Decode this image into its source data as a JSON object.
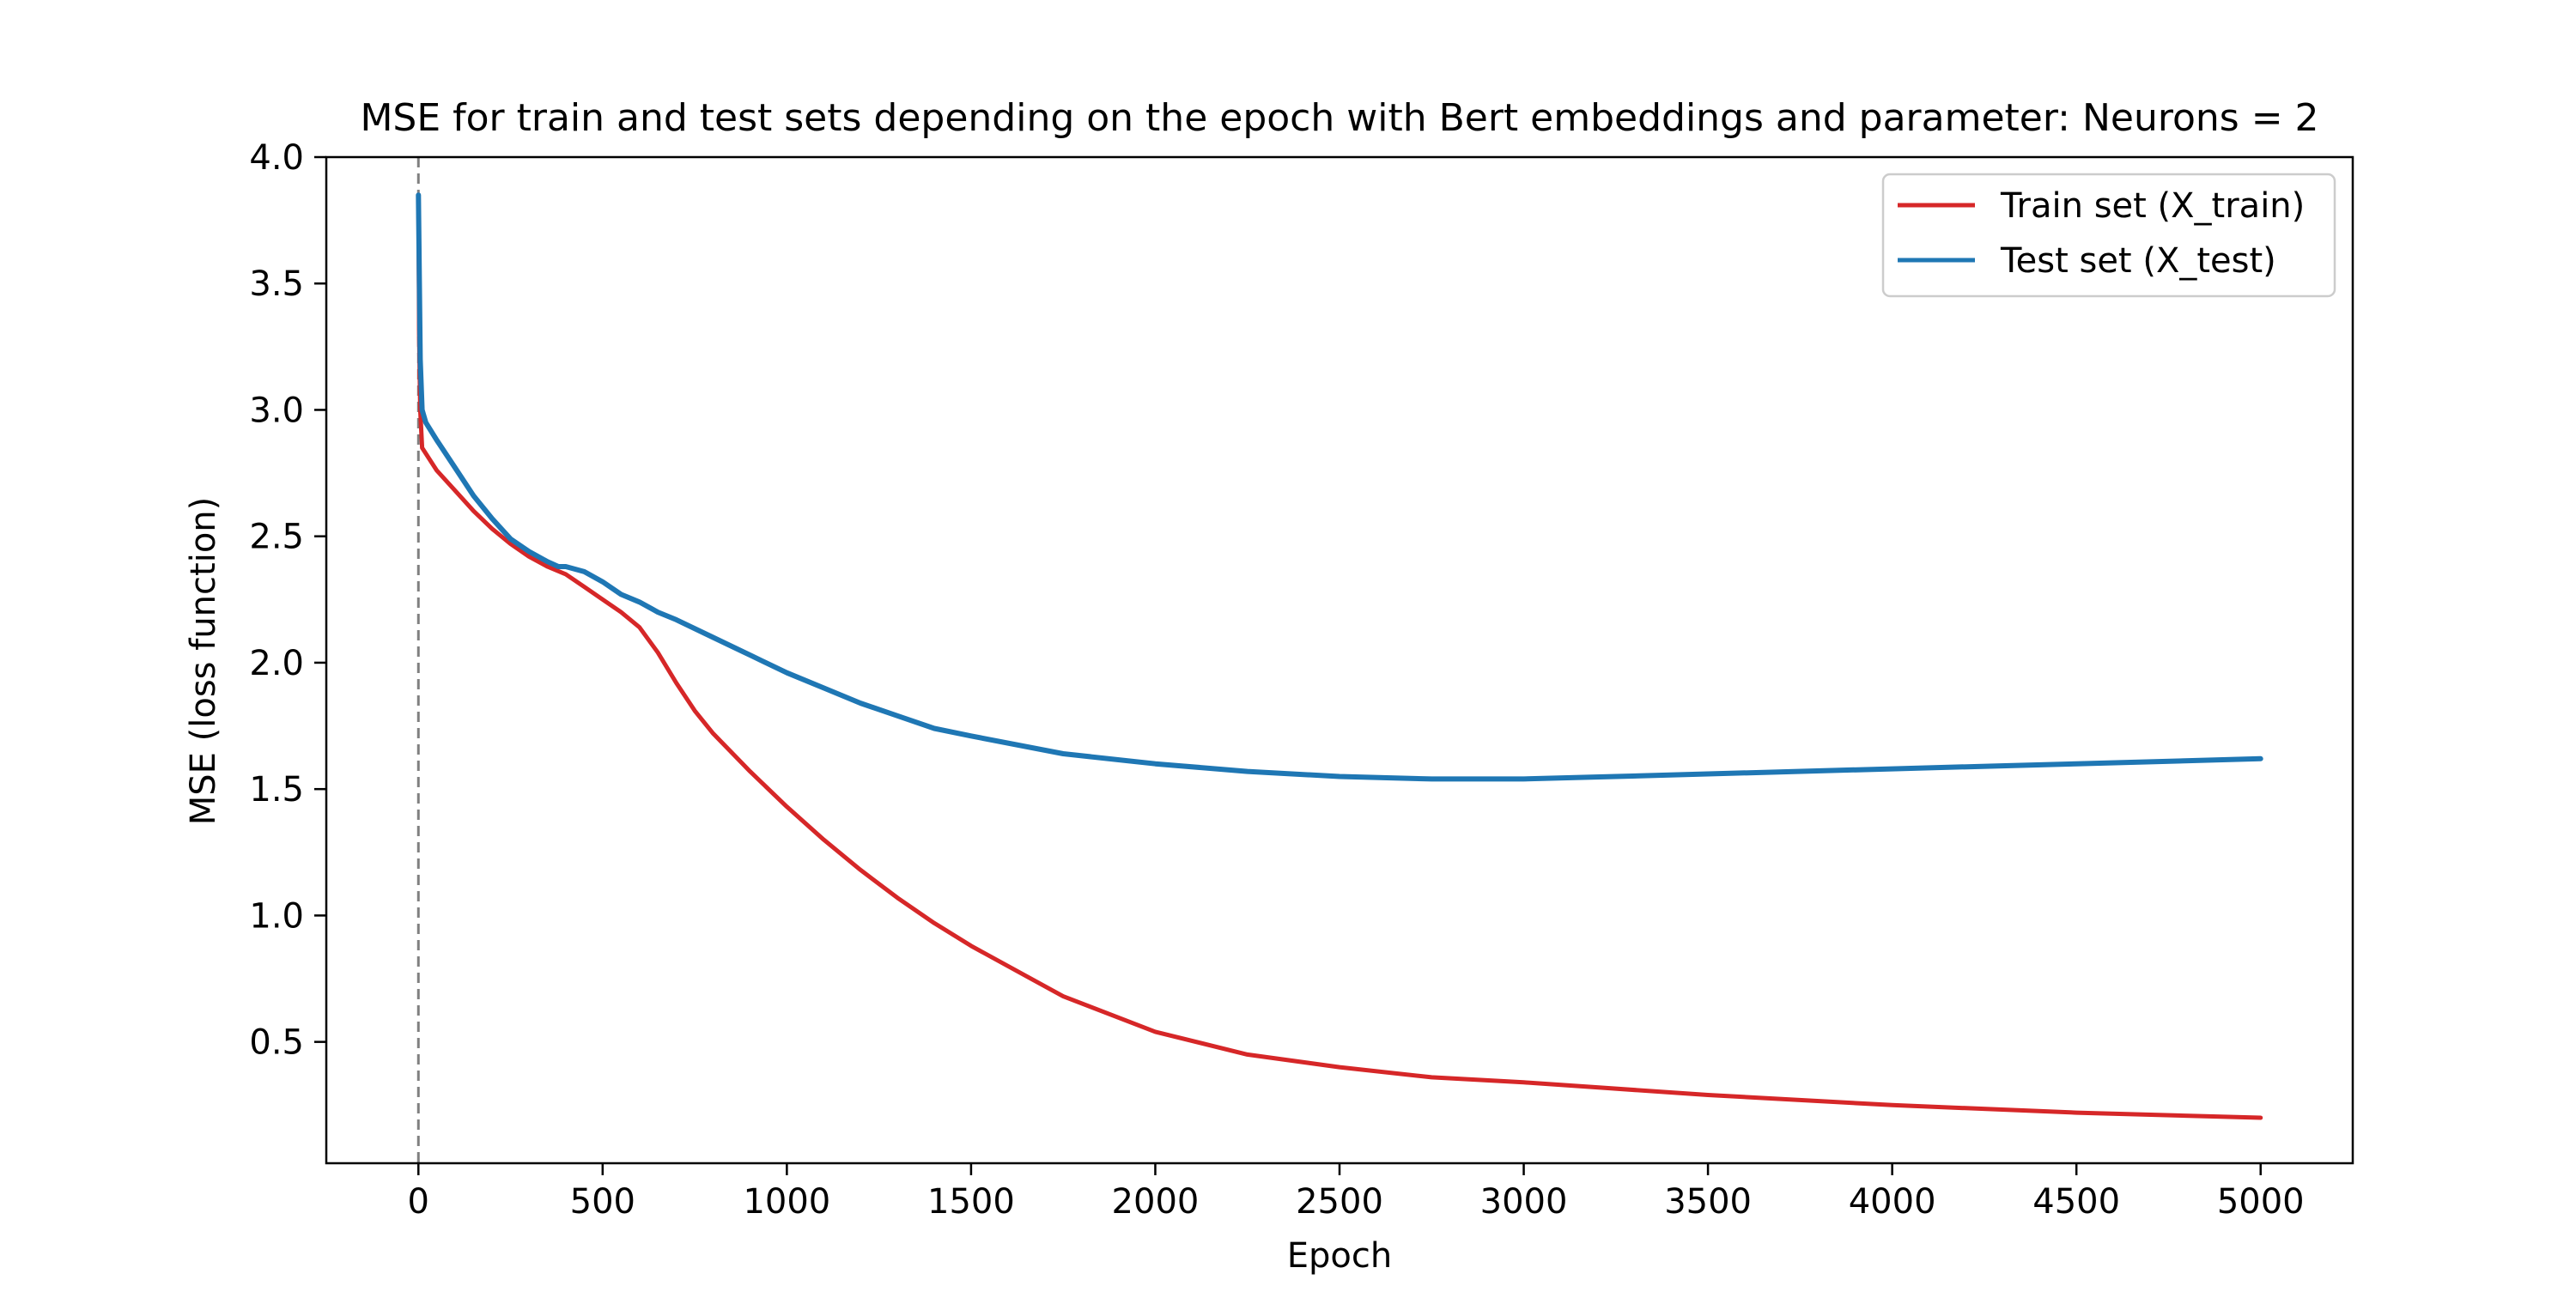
{
  "chart_data": {
    "type": "line",
    "title": "MSE for train and test sets depending on the epoch with Bert embeddings and parameter: Neurons = 2",
    "xlabel": "Epoch",
    "ylabel": "MSE (loss function)",
    "xlim": [
      -250,
      5250
    ],
    "ylim": [
      0.02,
      4.0
    ],
    "xticks": [
      0,
      500,
      1000,
      1500,
      2000,
      2500,
      3000,
      3500,
      4000,
      4500,
      5000
    ],
    "yticks": [
      0.5,
      1.0,
      1.5,
      2.0,
      2.5,
      3.0,
      3.5,
      4.0
    ],
    "xtick_labels": [
      "0",
      "500",
      "1000",
      "1500",
      "2000",
      "2500",
      "3000",
      "3500",
      "4000",
      "4500",
      "5000"
    ],
    "ytick_labels": [
      "0.5",
      "1.0",
      "1.5",
      "2.0",
      "2.5",
      "3.0",
      "3.5",
      "4.0"
    ],
    "grid": false,
    "legend_position": "top-right",
    "vline": {
      "x": 0,
      "color": "#808080",
      "style": "dashed"
    },
    "series": [
      {
        "name": "Train set (X_train)",
        "color": "#d62728",
        "x": [
          0,
          2,
          5,
          10,
          50,
          100,
          150,
          200,
          250,
          300,
          350,
          400,
          450,
          500,
          550,
          600,
          650,
          700,
          750,
          800,
          900,
          1000,
          1100,
          1200,
          1300,
          1400,
          1500,
          1750,
          2000,
          2250,
          2500,
          2750,
          3000,
          3500,
          4000,
          4500,
          5000
        ],
        "y": [
          3.85,
          3.3,
          3.0,
          2.85,
          2.76,
          2.68,
          2.6,
          2.53,
          2.47,
          2.42,
          2.38,
          2.35,
          2.3,
          2.25,
          2.2,
          2.14,
          2.04,
          1.92,
          1.81,
          1.72,
          1.57,
          1.43,
          1.3,
          1.18,
          1.07,
          0.97,
          0.88,
          0.68,
          0.54,
          0.45,
          0.4,
          0.36,
          0.34,
          0.29,
          0.25,
          0.22,
          0.2
        ]
      },
      {
        "name": "Test set (X_test)",
        "color": "#1f77b4",
        "x": [
          0,
          2,
          5,
          10,
          20,
          50,
          100,
          150,
          200,
          250,
          300,
          350,
          380,
          400,
          450,
          500,
          550,
          600,
          650,
          700,
          800,
          900,
          1000,
          1100,
          1200,
          1300,
          1400,
          1500,
          1750,
          2000,
          2250,
          2500,
          2750,
          3000,
          3250,
          3500,
          4000,
          4500,
          5000
        ],
        "y": [
          3.85,
          3.6,
          3.2,
          3.0,
          2.95,
          2.88,
          2.77,
          2.66,
          2.57,
          2.49,
          2.44,
          2.4,
          2.38,
          2.38,
          2.36,
          2.32,
          2.27,
          2.24,
          2.2,
          2.17,
          2.1,
          2.03,
          1.96,
          1.9,
          1.84,
          1.79,
          1.74,
          1.71,
          1.64,
          1.6,
          1.57,
          1.55,
          1.54,
          1.54,
          1.55,
          1.56,
          1.58,
          1.6,
          1.62
        ]
      }
    ]
  }
}
